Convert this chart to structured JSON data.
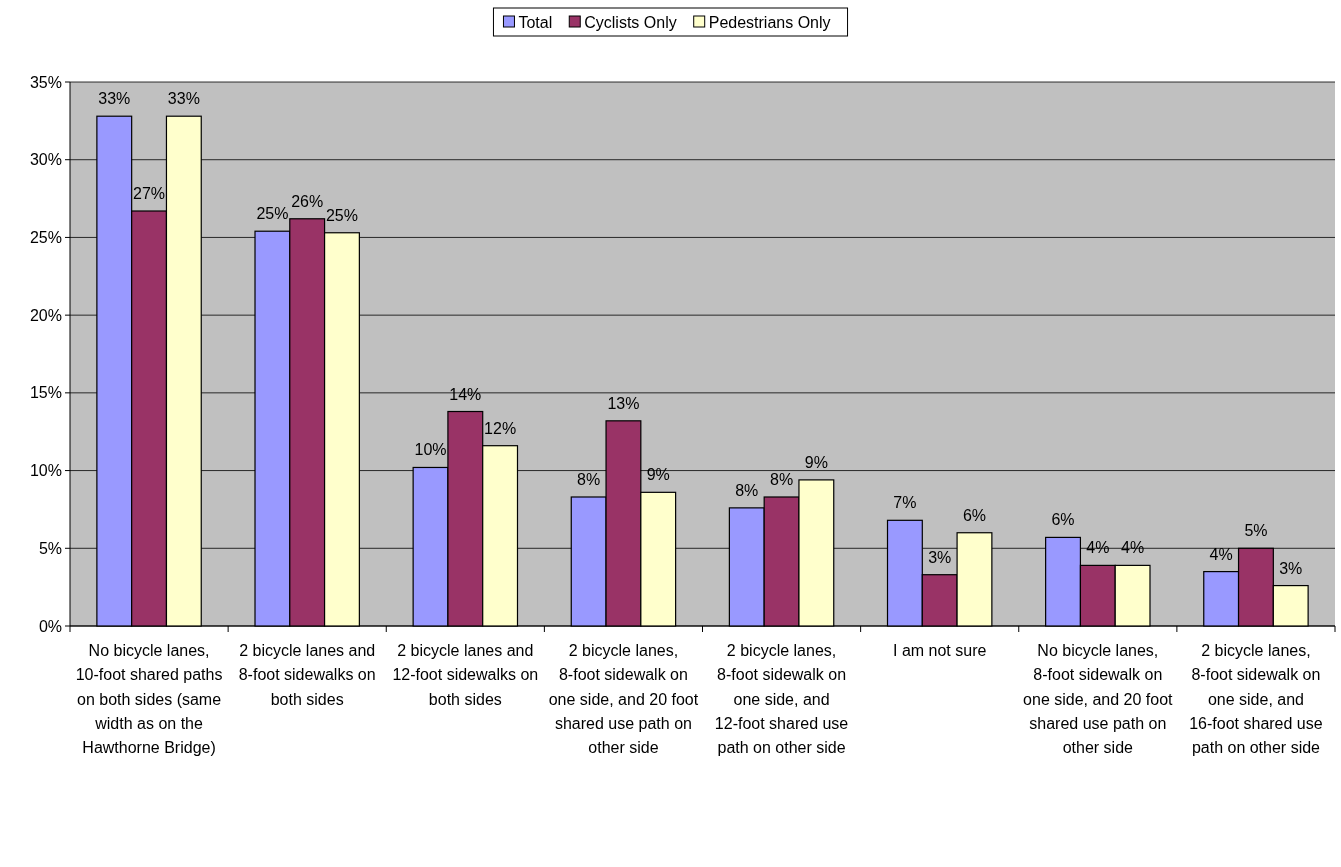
{
  "chart_data": {
    "type": "bar",
    "categories": [
      "No bicycle lanes, 10-foot shared paths on both sides (same width as on the Hawthorne Bridge)",
      "2 bicycle lanes and 8-foot sidewalks on both sides",
      "2 bicycle lanes and 12-foot sidewalks on both sides",
      "2 bicycle lanes, 8-foot sidewalk on one side, and 20 foot shared use path on other side",
      "2 bicycle lanes, 8-foot sidewalk on one side, and 12-foot shared use path on other side",
      "I am not sure",
      "No bicycle lanes, 8-foot sidewalk on one side, and 20 foot shared use path on other side",
      "2 bicycle lanes, 8-foot sidewalk on one side, and 16-foot shared use path on other side"
    ],
    "series": [
      {
        "name": "Total",
        "color": "#9999ff",
        "values": [
          32.8,
          25.4,
          10.2,
          8.3,
          7.6,
          6.8,
          5.7,
          3.5
        ],
        "value_labels": [
          "33%",
          "25%",
          "10%",
          "8%",
          "8%",
          "7%",
          "6%",
          "4%"
        ]
      },
      {
        "name": "Cyclists Only",
        "color": "#993366",
        "values": [
          26.7,
          26.2,
          13.8,
          13.2,
          8.3,
          3.3,
          3.9,
          5.0
        ],
        "value_labels": [
          "27%",
          "26%",
          "14%",
          "13%",
          "8%",
          "3%",
          "4%",
          "5%"
        ]
      },
      {
        "name": "Pedestrians Only",
        "color": "#ffffcc",
        "values": [
          32.8,
          25.3,
          11.6,
          8.6,
          9.4,
          6.0,
          3.9,
          2.6
        ],
        "value_labels": [
          "33%",
          "25%",
          "12%",
          "9%",
          "9%",
          "6%",
          "4%",
          "3%"
        ]
      }
    ],
    "ylim": [
      0,
      35
    ],
    "yticks": [
      {
        "value": 0,
        "label": "0%"
      },
      {
        "value": 5,
        "label": "5%"
      },
      {
        "value": 10,
        "label": "10%"
      },
      {
        "value": 15,
        "label": "15%"
      },
      {
        "value": 20,
        "label": "20%"
      },
      {
        "value": 25,
        "label": "25%"
      },
      {
        "value": 30,
        "label": "30%"
      },
      {
        "value": 35,
        "label": "35%"
      }
    ],
    "grid": "y",
    "legend": "top"
  }
}
